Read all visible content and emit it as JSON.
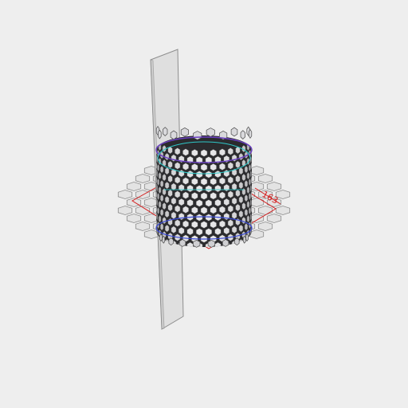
{
  "viewport": {
    "background": "#eeeeee"
  },
  "model": {
    "object": "honeycomb-cylinder",
    "colors": {
      "panel_fill": "#dcdcdc",
      "panel_edge": "#8e8e8e",
      "cell_dark": "#2b2b2e",
      "cell_light": "#f2f2f4",
      "cell_edge": "#555555",
      "rim_top": "#6a3fc0",
      "rim_cyan": "#2ec8c8",
      "rim_blue": "#3b4bd6",
      "dimension": "#d42020",
      "base_cell": "#e3e3e3"
    }
  },
  "dimension": {
    "value": "163"
  }
}
